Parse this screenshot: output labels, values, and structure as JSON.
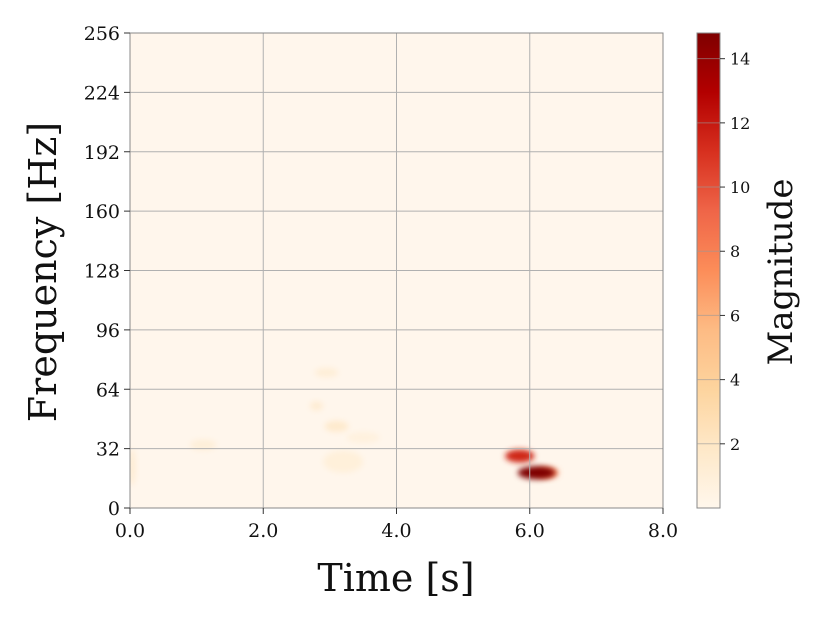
{
  "chart_data": {
    "type": "heatmap",
    "title": "",
    "xlabel": "Time [s]",
    "ylabel": "Frequency [Hz]",
    "xlim": [
      0,
      8
    ],
    "ylim": [
      0,
      256
    ],
    "x_ticks": [
      0,
      2,
      4,
      6,
      8
    ],
    "x_tick_labels": [
      "0.0",
      "2.0",
      "4.0",
      "6.0",
      "8.0"
    ],
    "y_ticks": [
      0,
      32,
      64,
      96,
      128,
      160,
      192,
      224,
      256
    ],
    "y_tick_labels": [
      "0",
      "32",
      "64",
      "96",
      "128",
      "160",
      "192",
      "224",
      "256"
    ],
    "grid": true,
    "colormap": "OrRd",
    "colorbar": {
      "label": "Magnitude",
      "range": [
        0,
        14.8
      ],
      "ticks": [
        2,
        4,
        6,
        8,
        10,
        12,
        14
      ],
      "tick_labels": [
        "2",
        "4",
        "6",
        "8",
        "10",
        "12",
        "14"
      ]
    },
    "features": [
      {
        "t": 6.1,
        "f": 19,
        "magnitude": 14.8,
        "spread_t": 0.28,
        "spread_f": 3.5
      },
      {
        "t": 5.85,
        "f": 28,
        "magnitude": 11.5,
        "spread_t": 0.22,
        "spread_f": 3.5
      },
      {
        "t": 6.25,
        "f": 19,
        "magnitude": 8,
        "spread_t": 0.18,
        "spread_f": 3
      },
      {
        "t": 3.1,
        "f": 44,
        "magnitude": 1.6,
        "spread_t": 0.18,
        "spread_f": 3
      },
      {
        "t": 2.8,
        "f": 55,
        "magnitude": 1.3,
        "spread_t": 0.1,
        "spread_f": 2.5
      },
      {
        "t": 2.95,
        "f": 73,
        "magnitude": 1.1,
        "spread_t": 0.18,
        "spread_f": 2.5
      },
      {
        "t": 1.1,
        "f": 34,
        "magnitude": 1.0,
        "spread_t": 0.2,
        "spread_f": 3
      },
      {
        "t": 3.2,
        "f": 25,
        "magnitude": 0.9,
        "spread_t": 0.3,
        "spread_f": 6
      },
      {
        "t": 3.5,
        "f": 38,
        "magnitude": 0.7,
        "spread_t": 0.25,
        "spread_f": 3
      },
      {
        "t": 0.03,
        "f": 22,
        "magnitude": 1.2,
        "spread_t": 0.06,
        "spread_f": 10
      }
    ]
  }
}
